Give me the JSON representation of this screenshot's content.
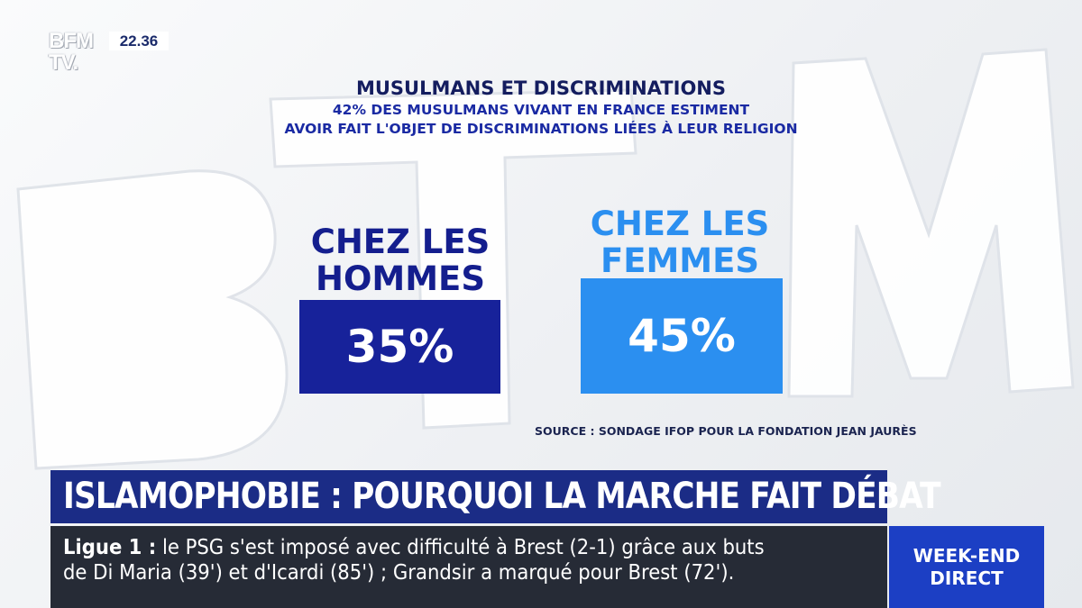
{
  "channel": {
    "logo_top": "BFM",
    "logo_bottom": "TV.",
    "clock": "22.36"
  },
  "infographic": {
    "title": "MUSULMANS ET DISCRIMINATIONS",
    "subtitle_line_1": "42% DES MUSULMANS VIVANT EN FRANCE ESTIMENT",
    "subtitle_line_2": "AVOIR FAIT L'OBJET DE DISCRIMINATIONS LIÉES À LEUR RELIGION",
    "men": {
      "label_line_1": "CHEZ LES",
      "label_line_2": "HOMMES",
      "value": "35%",
      "color": "#17229a"
    },
    "women": {
      "label_line_1": "CHEZ LES",
      "label_line_2": "FEMMES",
      "value": "45%",
      "color": "#2b8ff0"
    },
    "source": "SOURCE : SONDAGE IFOP POUR LA FONDATION JEAN JAURÈS"
  },
  "headline": {
    "text": "ISLAMOPHOBIE : POURQUOI LA MARCHE FAIT DÉBAT",
    "color": "#1b2c86"
  },
  "ticker": {
    "label": "Ligue 1 :",
    "line_1": " le PSG s'est imposé avec difficulté à Brest (2-1) grâce aux buts",
    "line_2": "de Di Maria (39') et d'Icardi (85') ; Grandsir a marqué pour Brest (72')."
  },
  "program": {
    "line_1": "WEEK-END",
    "line_2": "DIRECT",
    "color": "#1c3fc4"
  }
}
